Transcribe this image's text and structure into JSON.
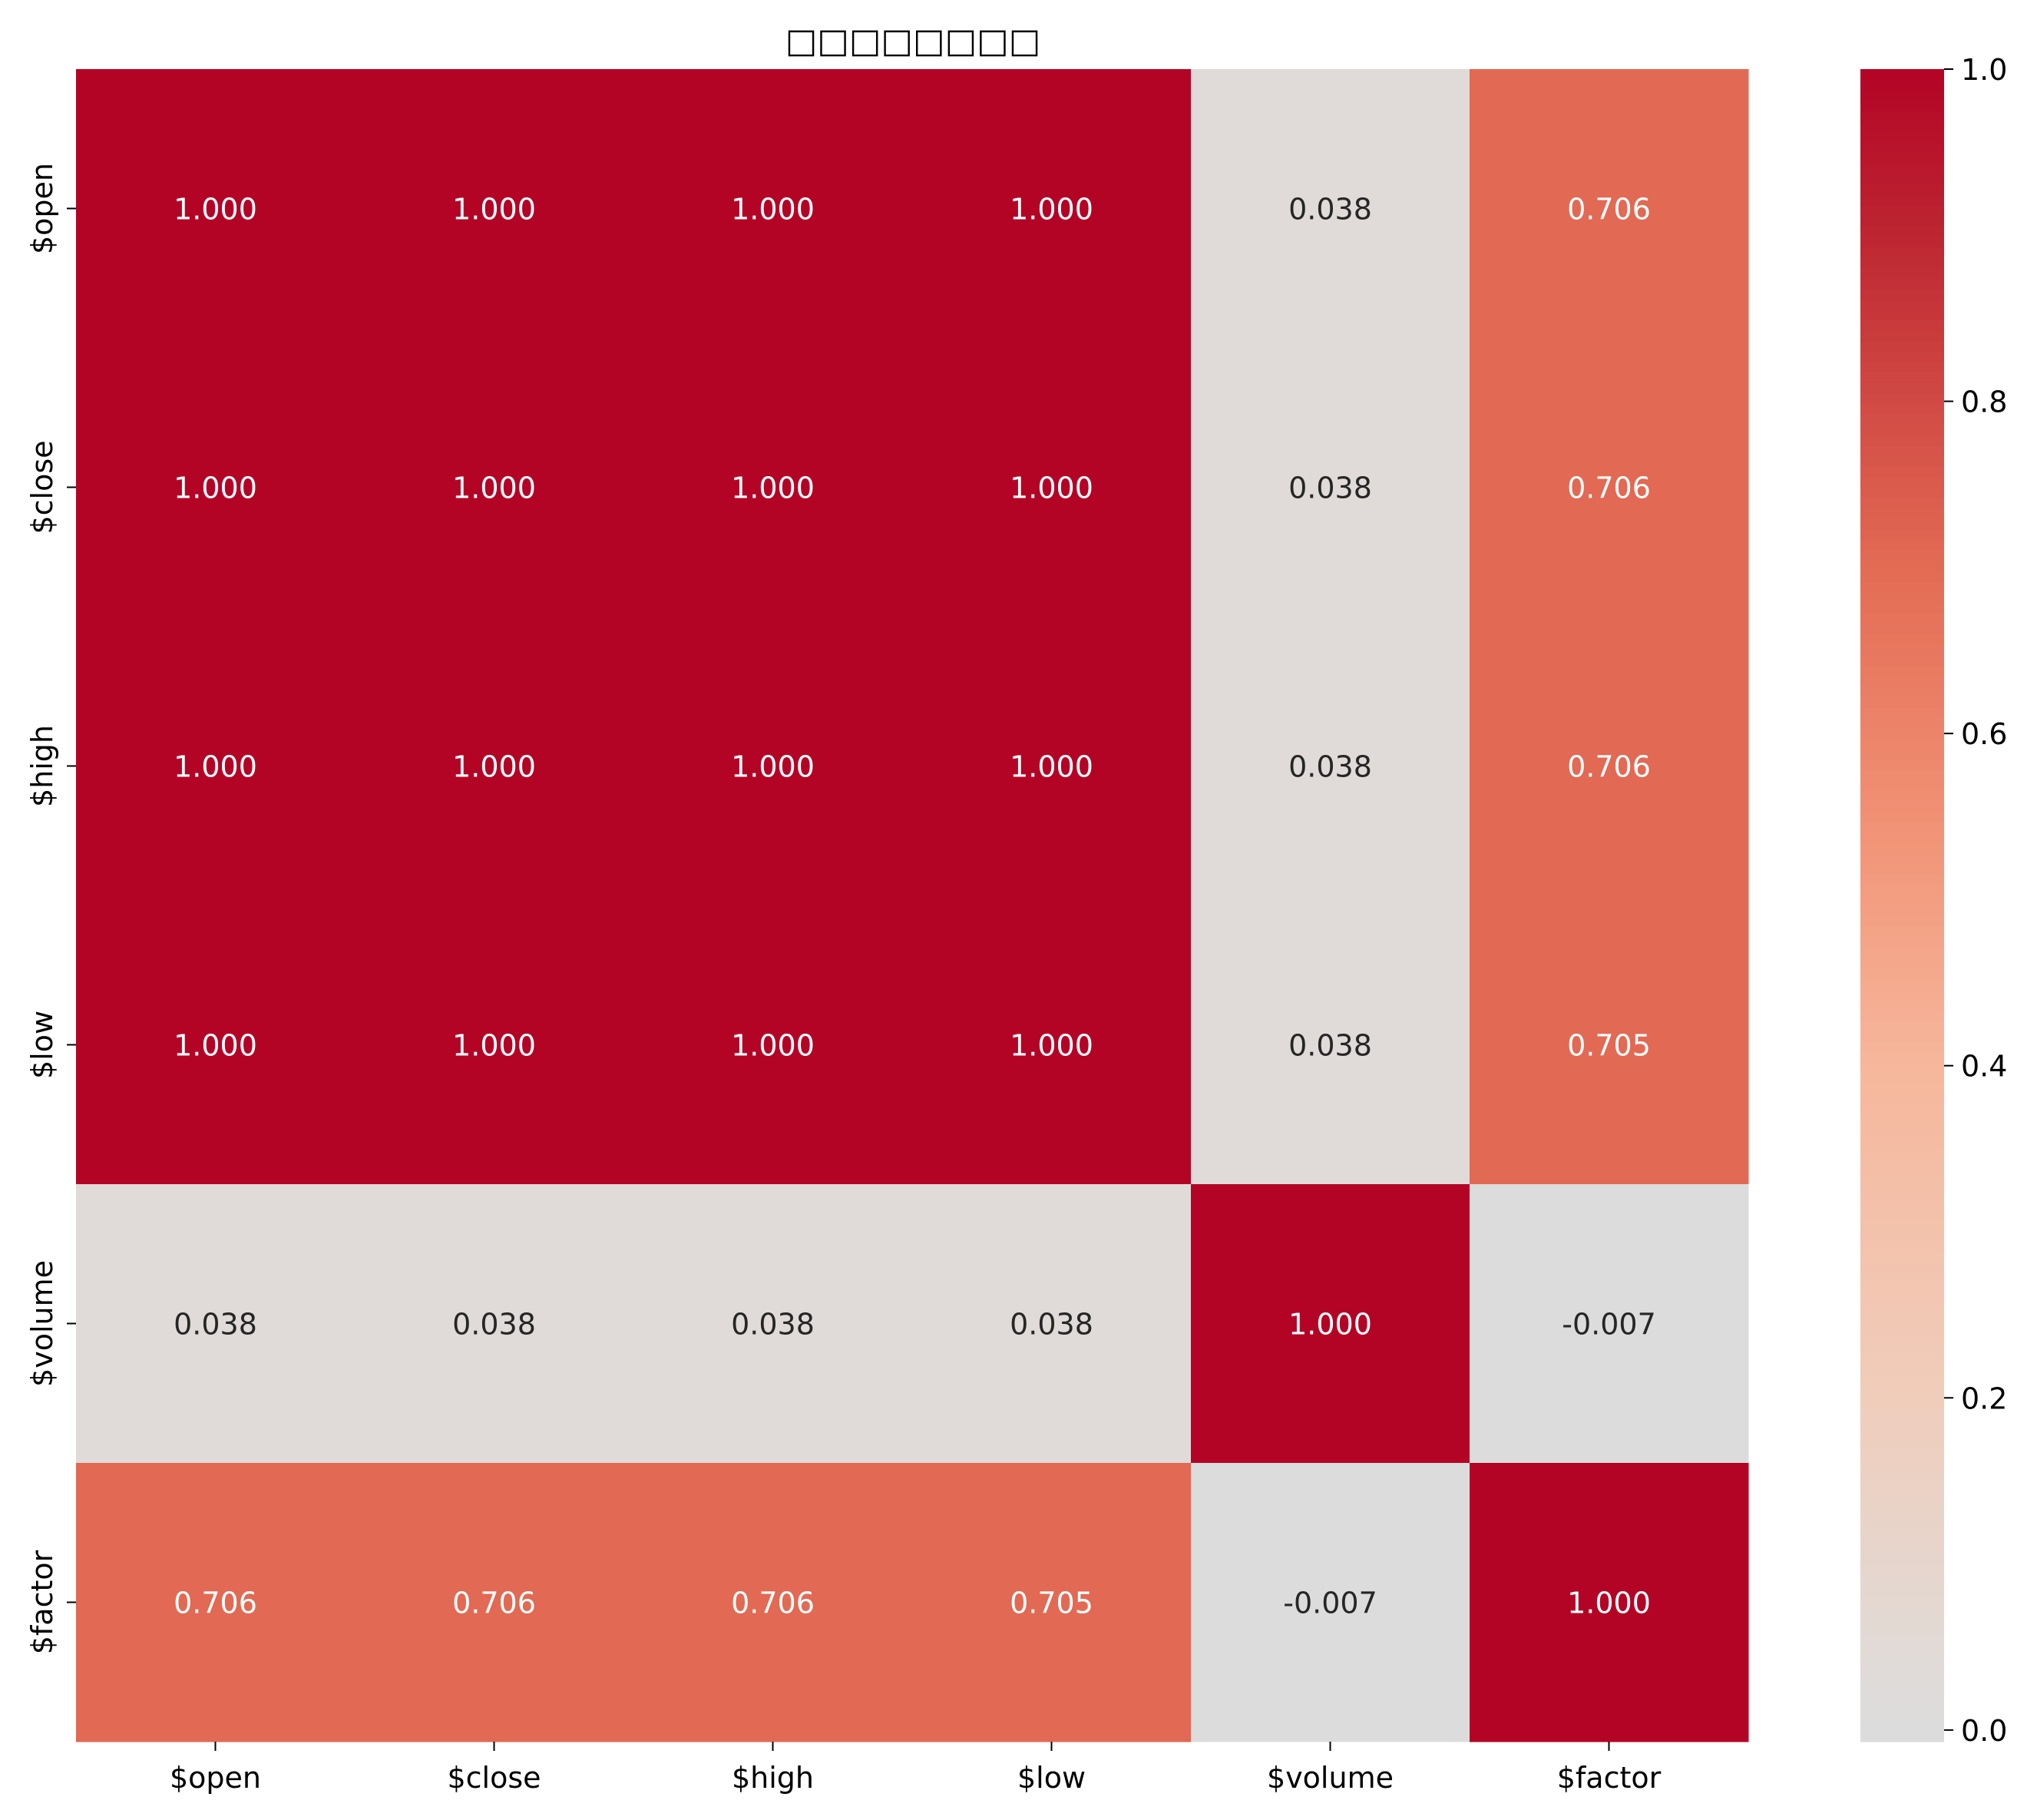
{
  "chart_data": {
    "type": "heatmap",
    "title": "□□□□□□□□",
    "x_categories": [
      "$open",
      "$close",
      "$high",
      "$low",
      "$volume",
      "$factor"
    ],
    "y_categories": [
      "$open",
      "$close",
      "$high",
      "$low",
      "$volume",
      "$factor"
    ],
    "values": [
      [
        1.0,
        1.0,
        1.0,
        1.0,
        0.038,
        0.706
      ],
      [
        1.0,
        1.0,
        1.0,
        1.0,
        0.038,
        0.706
      ],
      [
        1.0,
        1.0,
        1.0,
        1.0,
        0.038,
        0.706
      ],
      [
        1.0,
        1.0,
        1.0,
        1.0,
        0.038,
        0.705
      ],
      [
        0.038,
        0.038,
        0.038,
        0.038,
        1.0,
        -0.007
      ],
      [
        0.706,
        0.706,
        0.706,
        0.705,
        -0.007,
        1.0
      ]
    ],
    "value_format": "0.000",
    "colorbar": {
      "colormap": "coolwarm",
      "center": 0,
      "range": [
        -0.007,
        1.0
      ],
      "ticks": [
        0.0,
        0.2,
        0.4,
        0.6,
        0.8,
        1.0
      ],
      "tick_labels": [
        "0.0",
        "0.2",
        "0.4",
        "0.6",
        "0.8",
        "1.0"
      ]
    },
    "xlabel": "",
    "ylabel": ""
  }
}
